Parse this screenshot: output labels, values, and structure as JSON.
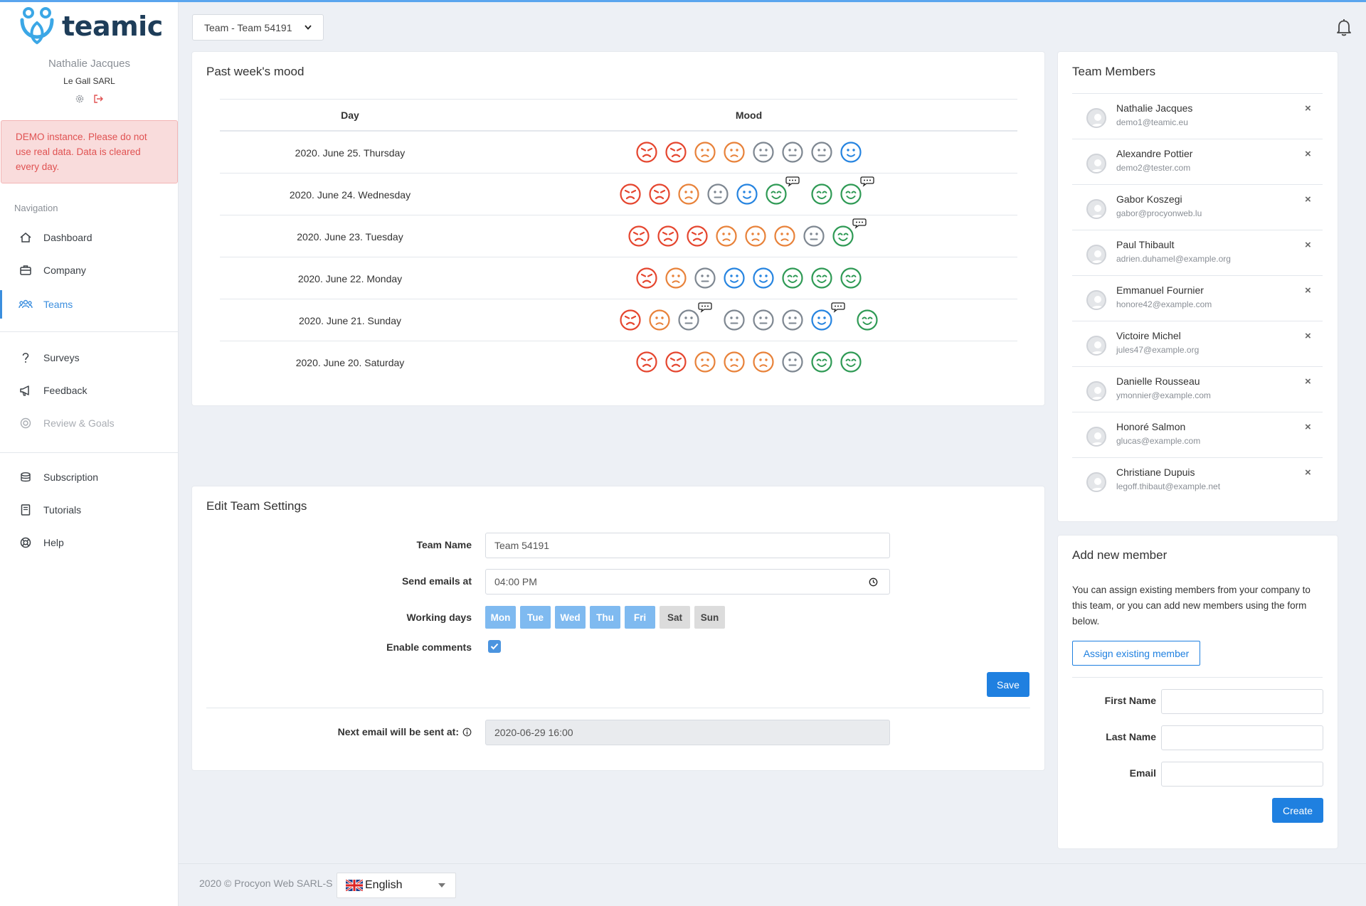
{
  "colors": {
    "primary": "#1f80e0",
    "mood_very_bad": "#e5462f",
    "mood_bad": "#e8823a",
    "mood_neutral": "#7e8791",
    "mood_good": "#2684e0",
    "mood_very_good": "#2f9a55"
  },
  "app": {
    "name": "teamic"
  },
  "user": {
    "name": "Nathalie Jacques",
    "company": "Le Gall SARL"
  },
  "demo_notice": "DEMO instance. Please do not use real data. Data is cleared every day.",
  "nav": {
    "heading": "Navigation",
    "items": [
      {
        "label": "Dashboard",
        "icon": "home-icon"
      },
      {
        "label": "Company",
        "icon": "briefcase-icon"
      },
      {
        "label": "Teams",
        "icon": "users-icon",
        "active": true
      },
      {
        "label": "Surveys",
        "icon": "question-icon"
      },
      {
        "label": "Feedback",
        "icon": "megaphone-icon"
      },
      {
        "label": "Review & Goals",
        "icon": "target-icon",
        "disabled": true
      },
      {
        "label": "Subscription",
        "icon": "coins-icon"
      },
      {
        "label": "Tutorials",
        "icon": "book-icon"
      },
      {
        "label": "Help",
        "icon": "lifebuoy-icon"
      }
    ]
  },
  "team_select": {
    "value": "Team - Team 54191"
  },
  "mood": {
    "title": "Past week's mood",
    "col_day": "Day",
    "col_mood": "Mood",
    "rows": [
      {
        "day": "2020. June 25. Thursday",
        "faces": [
          1,
          1,
          2,
          2,
          3,
          3,
          3,
          4
        ],
        "comments": []
      },
      {
        "day": "2020. June 24. Wednesday",
        "faces": [
          1,
          1,
          2,
          3,
          4,
          5,
          5,
          5
        ],
        "comments": [
          5,
          7
        ]
      },
      {
        "day": "2020. June 23. Tuesday",
        "faces": [
          1,
          1,
          1,
          2,
          2,
          2,
          3,
          5
        ],
        "comments": [
          7
        ]
      },
      {
        "day": "2020. June 22. Monday",
        "faces": [
          1,
          2,
          3,
          4,
          4,
          5,
          5,
          5
        ],
        "comments": []
      },
      {
        "day": "2020. June 21. Sunday",
        "faces": [
          1,
          2,
          3,
          3,
          3,
          3,
          4,
          5
        ],
        "comments": [
          2,
          6
        ]
      },
      {
        "day": "2020. June 20. Saturday",
        "faces": [
          1,
          1,
          2,
          2,
          2,
          3,
          5,
          5
        ],
        "comments": []
      }
    ]
  },
  "settings": {
    "title": "Edit Team Settings",
    "team_name_label": "Team Name",
    "team_name_value": "Team 54191",
    "send_emails_label": "Send emails at",
    "send_emails_value": "04:00 PM",
    "working_days_label": "Working days",
    "days": [
      {
        "label": "Mon",
        "on": true
      },
      {
        "label": "Tue",
        "on": true
      },
      {
        "label": "Wed",
        "on": true
      },
      {
        "label": "Thu",
        "on": true
      },
      {
        "label": "Fri",
        "on": true
      },
      {
        "label": "Sat",
        "on": false
      },
      {
        "label": "Sun",
        "on": false
      }
    ],
    "enable_comments_label": "Enable comments",
    "enable_comments_checked": true,
    "save_label": "Save",
    "next_email_label": "Next email will be sent at:",
    "next_email_value": "2020-06-29 16:00"
  },
  "members": {
    "title": "Team Members",
    "list": [
      {
        "name": "Nathalie Jacques",
        "email": "demo1@teamic.eu"
      },
      {
        "name": "Alexandre Pottier",
        "email": "demo2@tester.com"
      },
      {
        "name": "Gabor Koszegi",
        "email": "gabor@procyonweb.lu"
      },
      {
        "name": "Paul Thibault",
        "email": "adrien.duhamel@example.org"
      },
      {
        "name": "Emmanuel Fournier",
        "email": "honore42@example.com"
      },
      {
        "name": "Victoire Michel",
        "email": "jules47@example.org"
      },
      {
        "name": "Danielle Rousseau",
        "email": "ymonnier@example.com"
      },
      {
        "name": "Honoré Salmon",
        "email": "glucas@example.com"
      },
      {
        "name": "Christiane Dupuis",
        "email": "legoff.thibaut@example.net"
      }
    ],
    "remove_symbol": "×"
  },
  "add_member": {
    "title": "Add new member",
    "description": "You can assign existing members from your company to this team, or you can add new members using the form below.",
    "assign_label": "Assign existing member",
    "first_name_label": "First Name",
    "last_name_label": "Last Name",
    "email_label": "Email",
    "create_label": "Create"
  },
  "footer": {
    "copyright": "2020 © Procyon Web SARL-S",
    "language": "English"
  }
}
